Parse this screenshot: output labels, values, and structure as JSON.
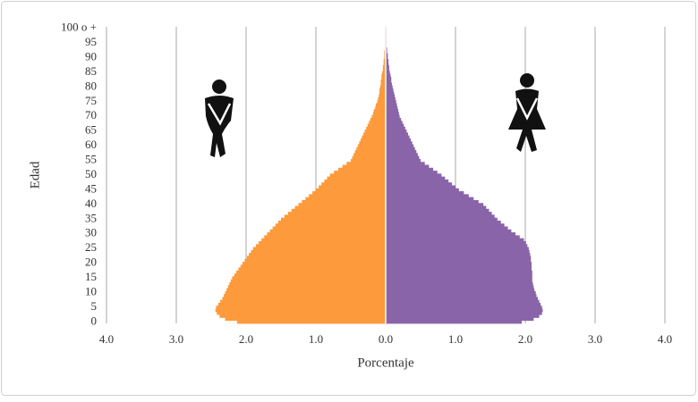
{
  "chart_data": {
    "type": "pyramid",
    "y_label": "Edad",
    "x_label": "Porcentaje",
    "categories": [
      "0",
      null,
      null,
      null,
      null,
      "5",
      null,
      null,
      null,
      null,
      "10",
      null,
      null,
      null,
      null,
      "15",
      null,
      null,
      null,
      null,
      "20",
      null,
      null,
      null,
      null,
      "25",
      null,
      null,
      null,
      null,
      "30",
      null,
      null,
      null,
      null,
      "35",
      null,
      null,
      null,
      null,
      "40",
      null,
      null,
      null,
      null,
      "45",
      null,
      null,
      null,
      null,
      "50",
      null,
      null,
      null,
      null,
      "55",
      null,
      null,
      null,
      null,
      "60",
      null,
      null,
      null,
      null,
      "65",
      null,
      null,
      null,
      null,
      "70",
      null,
      null,
      null,
      null,
      "75",
      null,
      null,
      null,
      null,
      "80",
      null,
      null,
      null,
      null,
      "85",
      null,
      null,
      null,
      null,
      "90",
      null,
      null,
      null,
      null,
      "95",
      null,
      null,
      null,
      null,
      "100 o +"
    ],
    "series": [
      {
        "color": "#fd9a3c",
        "values": [
          2.13,
          2.3,
          2.38,
          2.42,
          2.44,
          2.43,
          2.4,
          2.37,
          2.34,
          2.32,
          2.3,
          2.28,
          2.26,
          2.24,
          2.22,
          2.2,
          2.17,
          2.14,
          2.11,
          2.08,
          2.05,
          2.02,
          1.99,
          1.96,
          1.93,
          1.9,
          1.86,
          1.82,
          1.78,
          1.74,
          1.7,
          1.66,
          1.62,
          1.58,
          1.54,
          1.5,
          1.45,
          1.4,
          1.35,
          1.3,
          1.25,
          1.2,
          1.15,
          1.1,
          1.05,
          1.0,
          0.96,
          0.92,
          0.88,
          0.84,
          0.8,
          0.74,
          0.68,
          0.62,
          0.56,
          0.5,
          0.48,
          0.46,
          0.44,
          0.42,
          0.4,
          0.38,
          0.36,
          0.34,
          0.32,
          0.3,
          0.28,
          0.26,
          0.24,
          0.22,
          0.2,
          0.18,
          0.17,
          0.15,
          0.14,
          0.12,
          0.11,
          0.1,
          0.09,
          0.09,
          0.08,
          0.07,
          0.07,
          0.06,
          0.06,
          0.05,
          0.04,
          0.04,
          0.03,
          0.03,
          0.02,
          0.02,
          0.02,
          0.01,
          0.01,
          0.01,
          0.01,
          0.01,
          0.01,
          0.01,
          0.01
        ]
      },
      {
        "color": "#8a64a8",
        "values": [
          1.95,
          2.12,
          2.2,
          2.24,
          2.25,
          2.24,
          2.22,
          2.2,
          2.18,
          2.16,
          2.15,
          2.13,
          2.12,
          2.11,
          2.1,
          2.1,
          2.1,
          2.1,
          2.09,
          2.09,
          2.09,
          2.08,
          2.08,
          2.07,
          2.06,
          2.05,
          2.03,
          2.01,
          1.98,
          1.92,
          1.86,
          1.8,
          1.75,
          1.7,
          1.65,
          1.6,
          1.56,
          1.52,
          1.48,
          1.44,
          1.4,
          1.33,
          1.26,
          1.19,
          1.12,
          1.05,
          1.0,
          0.95,
          0.9,
          0.85,
          0.8,
          0.74,
          0.68,
          0.62,
          0.56,
          0.5,
          0.48,
          0.46,
          0.44,
          0.42,
          0.4,
          0.38,
          0.36,
          0.34,
          0.32,
          0.3,
          0.28,
          0.26,
          0.24,
          0.22,
          0.2,
          0.19,
          0.18,
          0.17,
          0.16,
          0.15,
          0.14,
          0.13,
          0.12,
          0.11,
          0.1,
          0.09,
          0.08,
          0.08,
          0.07,
          0.06,
          0.05,
          0.05,
          0.04,
          0.04,
          0.03,
          0.03,
          0.02,
          0.02,
          0.01,
          0.01,
          0.01,
          0.01,
          0.01,
          0.01,
          0.01
        ]
      }
    ],
    "xlim": [
      -4,
      4
    ],
    "xticks": [
      {
        "value": -4,
        "label": "4.0"
      },
      {
        "value": -3,
        "label": "3.0"
      },
      {
        "value": -2,
        "label": "2.0"
      },
      {
        "value": -1,
        "label": "1.0"
      },
      {
        "value": 0,
        "label": "0.0"
      },
      {
        "value": 1,
        "label": "1.0"
      },
      {
        "value": 2,
        "label": "2.0"
      },
      {
        "value": 3,
        "label": "3.0"
      },
      {
        "value": 4,
        "label": "4.0"
      }
    ],
    "grid": true
  }
}
